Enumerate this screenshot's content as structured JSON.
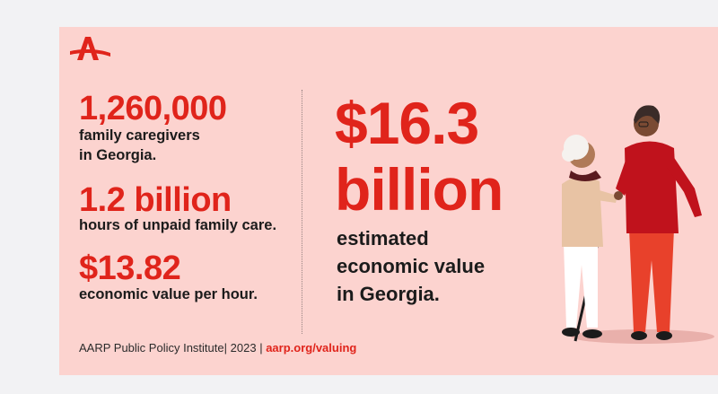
{
  "stats": [
    {
      "value": "1,260,000",
      "desc_lines": [
        "family caregivers",
        "in Georgia."
      ]
    },
    {
      "value": "1.2 billion",
      "desc_lines": [
        "hours of unpaid family care."
      ]
    },
    {
      "value": "$13.82",
      "desc_lines": [
        "economic value per hour."
      ]
    }
  ],
  "headline": {
    "value_line1": "$16.3",
    "value_line2": "billion",
    "desc_lines": [
      "estimated",
      "economic value",
      "in Georgia."
    ]
  },
  "footer": {
    "source": "AARP Public Policy Institute",
    "year": "2023",
    "separator": "|",
    "link": "aarp.org/valuing"
  },
  "colors": {
    "accent": "#e0241b",
    "card_bg": "#fcd3cf",
    "page_bg": "#f2f2f4",
    "text": "#1b1b1b"
  },
  "icons": {
    "logo": "aarp-logo-icon"
  }
}
